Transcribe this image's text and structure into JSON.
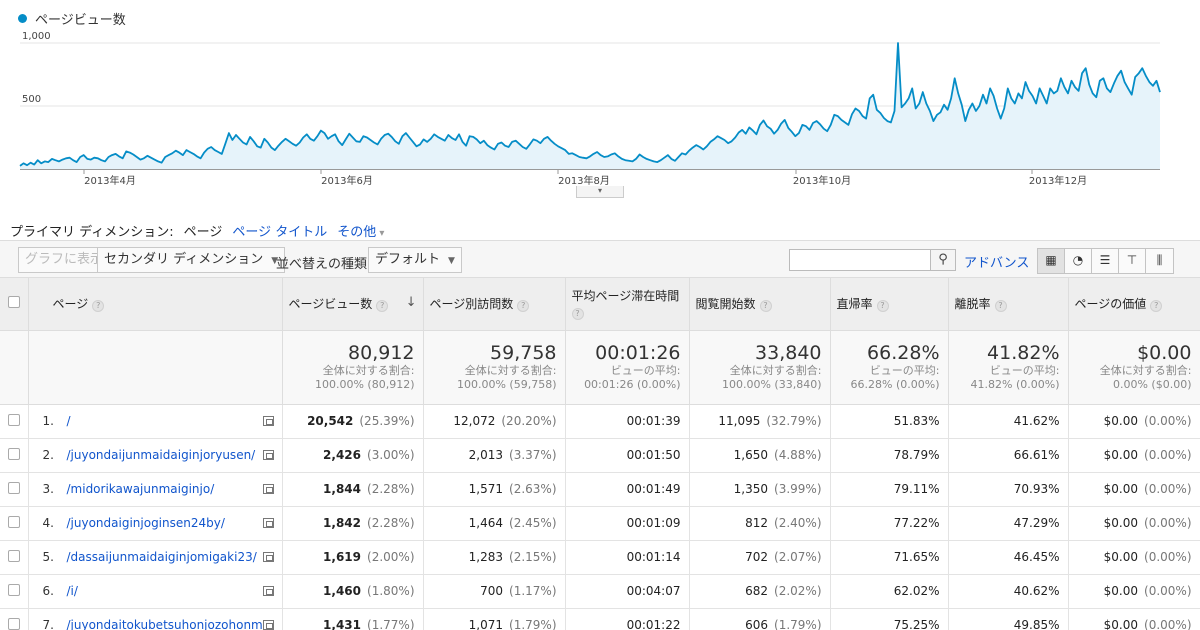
{
  "chart_data": {
    "type": "area",
    "series": [
      {
        "name": "ページビュー数",
        "color": "#058dc7",
        "values": [
          25,
          45,
          30,
          50,
          35,
          70,
          45,
          60,
          55,
          80,
          70,
          60,
          75,
          85,
          90,
          70,
          55,
          95,
          110,
          80,
          75,
          90,
          85,
          70,
          60,
          95,
          110,
          120,
          100,
          85,
          140,
          130,
          115,
          95,
          75,
          85,
          105,
          90,
          75,
          60,
          50,
          95,
          110,
          125,
          145,
          130,
          110,
          150,
          135,
          120,
          100,
          85,
          130,
          160,
          175,
          150,
          135,
          120,
          200,
          285,
          230,
          270,
          240,
          210,
          195,
          255,
          220,
          180,
          170,
          240,
          210,
          170,
          150,
          185,
          215,
          240,
          220,
          200,
          185,
          210,
          250,
          275,
          240,
          225,
          260,
          305,
          285,
          240,
          260,
          275,
          220,
          190,
          235,
          280,
          250,
          220,
          215,
          260,
          250,
          230,
          210,
          195,
          240,
          270,
          280,
          255,
          220,
          200,
          260,
          285,
          250,
          215,
          180,
          195,
          235,
          215,
          240,
          275,
          255,
          240,
          225,
          270,
          245,
          230,
          275,
          215,
          185,
          260,
          255,
          235,
          205,
          225,
          190,
          170,
          155,
          200,
          210,
          185,
          175,
          215,
          225,
          200,
          175,
          160,
          195,
          235,
          225,
          205,
          240,
          255,
          225,
          200,
          180,
          165,
          150,
          120,
          125,
          110,
          95,
          90,
          85,
          100,
          120,
          135,
          110,
          95,
          100,
          115,
          125,
          100,
          80,
          70,
          65,
          60,
          80,
          115,
          95,
          80,
          70,
          60,
          55,
          70,
          90,
          110,
          80,
          65,
          95,
          125,
          115,
          145,
          170,
          190,
          175,
          155,
          180,
          215,
          235,
          260,
          245,
          230,
          205,
          220,
          250,
          290,
          310,
          280,
          330,
          305,
          275,
          350,
          385,
          340,
          320,
          280,
          310,
          360,
          390,
          325,
          295,
          260,
          285,
          350,
          340,
          310,
          365,
          380,
          355,
          320,
          300,
          350,
          430,
          420,
          390,
          370,
          350,
          435,
          480,
          460,
          420,
          400,
          560,
          590,
          470,
          445,
          405,
          380,
          370,
          460,
          1000,
          490,
          520,
          560,
          640,
          480,
          520,
          610,
          520,
          460,
          380,
          430,
          450,
          510,
          470,
          560,
          720,
          600,
          510,
          380,
          470,
          520,
          460,
          500,
          590,
          520,
          640,
          580,
          480,
          400,
          480,
          640,
          560,
          520,
          600,
          560,
          690,
          620,
          580,
          520,
          640,
          580,
          520,
          640,
          600,
          620,
          720,
          650,
          600,
          700,
          650,
          620,
          760,
          800,
          670,
          600,
          570,
          700,
          720,
          640,
          610,
          680,
          740,
          780,
          690,
          640,
          590,
          730,
          760,
          800,
          740,
          690,
          660,
          700,
          610
        ]
      }
    ],
    "x_tick_labels": [
      "2013年4月",
      "2013年6月",
      "2013年8月",
      "2013年10月",
      "2013年12月"
    ],
    "y_tick_labels": [
      "1,000",
      "500"
    ],
    "ylim": [
      0,
      1000
    ],
    "grid": true
  },
  "legend": {
    "label": "ページビュー数"
  },
  "dimension_bar": {
    "label": "プライマリ ディメンション:",
    "current": "ページ",
    "links": [
      "ページ タイトル",
      "その他"
    ]
  },
  "toolbar": {
    "graph_btn": "グラフに表示",
    "secondary_dim": "セカンダリ ディメンション",
    "sort_label": "並べ替えの種類:",
    "sort_value": "デフォルト",
    "advanced": "アドバンス",
    "search_placeholder": ""
  },
  "table": {
    "headers": [
      "ページ",
      "ページビュー数",
      "ページ別訪問数",
      "平均ページ滞在時間",
      "閲覧開始数",
      "直帰率",
      "離脱率",
      "ページの価値"
    ],
    "totals": [
      {
        "main": "80,912",
        "sub1": "全体に対する割合:",
        "sub2": "100.00% (80,912)"
      },
      {
        "main": "59,758",
        "sub1": "全体に対する割合:",
        "sub2": "100.00% (59,758)"
      },
      {
        "main": "00:01:26",
        "sub1": "ビューの平均:",
        "sub2": "00:01:26 (0.00%)"
      },
      {
        "main": "33,840",
        "sub1": "全体に対する割合:",
        "sub2": "100.00% (33,840)"
      },
      {
        "main": "66.28%",
        "sub1": "ビューの平均:",
        "sub2": "66.28% (0.00%)"
      },
      {
        "main": "41.82%",
        "sub1": "ビューの平均:",
        "sub2": "41.82% (0.00%)"
      },
      {
        "main": "$0.00",
        "sub1": "全体に対する割合:",
        "sub2": "0.00% ($0.00)"
      }
    ],
    "rows": [
      {
        "idx": "1.",
        "page": "/",
        "pv": "20,542",
        "pv_pct": "(25.39%)",
        "uv": "12,072",
        "uv_pct": "(20.20%)",
        "time": "00:01:39",
        "ent": "11,095",
        "ent_pct": "(32.79%)",
        "bounce": "51.83%",
        "exit": "41.62%",
        "val": "$0.00",
        "val_pct": "(0.00%)"
      },
      {
        "idx": "2.",
        "page": "/juyondaijunmaidaiginjoryusen/",
        "pv": "2,426",
        "pv_pct": "(3.00%)",
        "uv": "2,013",
        "uv_pct": "(3.37%)",
        "time": "00:01:50",
        "ent": "1,650",
        "ent_pct": "(4.88%)",
        "bounce": "78.79%",
        "exit": "66.61%",
        "val": "$0.00",
        "val_pct": "(0.00%)"
      },
      {
        "idx": "3.",
        "page": "/midorikawajunmaiginjo/",
        "pv": "1,844",
        "pv_pct": "(2.28%)",
        "uv": "1,571",
        "uv_pct": "(2.63%)",
        "time": "00:01:49",
        "ent": "1,350",
        "ent_pct": "(3.99%)",
        "bounce": "79.11%",
        "exit": "70.93%",
        "val": "$0.00",
        "val_pct": "(0.00%)"
      },
      {
        "idx": "4.",
        "page": "/juyondaiginjoginsen24by/",
        "pv": "1,842",
        "pv_pct": "(2.28%)",
        "uv": "1,464",
        "uv_pct": "(2.45%)",
        "time": "00:01:09",
        "ent": "812",
        "ent_pct": "(2.40%)",
        "bounce": "77.22%",
        "exit": "47.29%",
        "val": "$0.00",
        "val_pct": "(0.00%)"
      },
      {
        "idx": "5.",
        "page": "/dassaijunmaidaiginjomigaki23/",
        "pv": "1,619",
        "pv_pct": "(2.00%)",
        "uv": "1,283",
        "uv_pct": "(2.15%)",
        "time": "00:01:14",
        "ent": "702",
        "ent_pct": "(2.07%)",
        "bounce": "71.65%",
        "exit": "46.45%",
        "val": "$0.00",
        "val_pct": "(0.00%)"
      },
      {
        "idx": "6.",
        "page": "/i/",
        "pv": "1,460",
        "pv_pct": "(1.80%)",
        "uv": "700",
        "uv_pct": "(1.17%)",
        "time": "00:04:07",
        "ent": "682",
        "ent_pct": "(2.02%)",
        "bounce": "62.02%",
        "exit": "40.62%",
        "val": "$0.00",
        "val_pct": "(0.00%)"
      },
      {
        "idx": "7.",
        "page": "/juyondaitokubetsuhonjozohonm",
        "pv": "1,431",
        "pv_pct": "(1.77%)",
        "uv": "1,071",
        "uv_pct": "(1.79%)",
        "time": "00:01:22",
        "ent": "606",
        "ent_pct": "(1.79%)",
        "bounce": "75.25%",
        "exit": "49.85%",
        "val": "$0.00",
        "val_pct": "(0.00%)"
      }
    ]
  }
}
